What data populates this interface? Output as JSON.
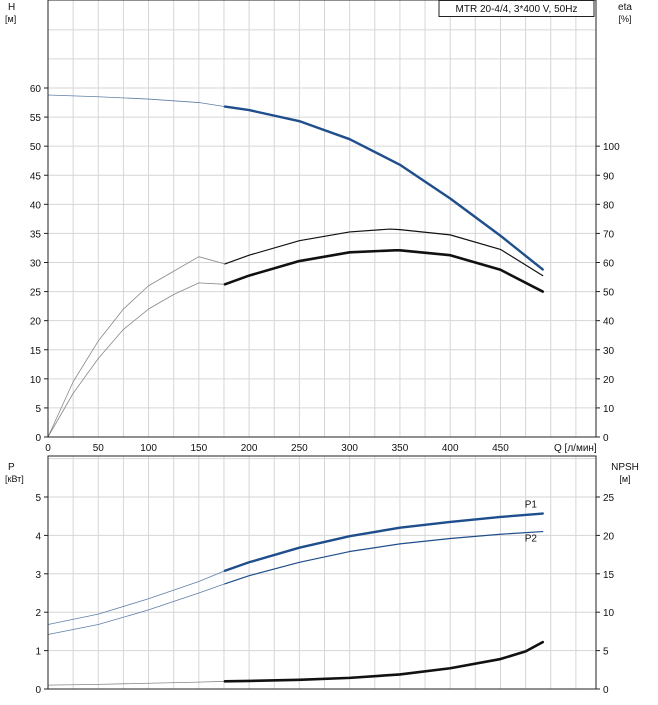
{
  "chart_data": [
    {
      "type": "line",
      "title": "",
      "legend_box": "MTR 20-4/4, 3*400 V, 50Hz",
      "xlabel": "Q [л/мин]",
      "x_ticks": [
        "0",
        "50",
        "100",
        "150",
        "200",
        "250",
        "300",
        "350",
        "400",
        "450"
      ],
      "xlim": [
        0,
        545
      ],
      "y_left": {
        "label_top": "H",
        "label_unit": "[м]",
        "ticks": [
          0,
          5,
          10,
          15,
          20,
          25,
          30,
          35,
          40,
          45,
          50,
          55,
          60
        ],
        "lim": [
          0,
          60
        ]
      },
      "y_right": {
        "label_top": "eta",
        "label_unit": "[%]",
        "ticks": [
          0,
          10,
          20,
          30,
          40,
          50,
          60,
          70,
          80,
          90,
          100
        ],
        "lim": [
          0,
          120
        ]
      },
      "grid": true,
      "series": [
        {
          "axis": "left",
          "color": "#1f4e8c",
          "width_style": "thick",
          "x": [
            0,
            50,
            100,
            150,
            176,
            200,
            250,
            300,
            350,
            400,
            450,
            492
          ],
          "y": [
            58.8,
            58.5,
            58.1,
            57.5,
            56.8,
            56.2,
            54.3,
            51.2,
            46.8,
            41.0,
            34.6,
            28.8
          ]
        },
        {
          "axis": "right",
          "color": "#111111",
          "width_style": "thin",
          "x": [
            0,
            25,
            50,
            75,
            100,
            125,
            150,
            176,
            200,
            250,
            300,
            340,
            350,
            400,
            450,
            492
          ],
          "y": [
            0,
            19,
            33,
            44,
            52,
            57,
            62,
            59.5,
            62.5,
            67.5,
            70.5,
            71.5,
            71.3,
            69.5,
            64.5,
            55.5
          ]
        },
        {
          "axis": "right",
          "color": "#111111",
          "width_style": "bold",
          "x": [
            0,
            25,
            50,
            75,
            100,
            125,
            150,
            176,
            200,
            250,
            300,
            345,
            350,
            400,
            450,
            492
          ],
          "y": [
            0,
            15,
            27,
            37,
            44,
            49,
            53,
            52.5,
            55.5,
            60.5,
            63.5,
            64.2,
            64.2,
            62.5,
            57.5,
            50
          ]
        }
      ]
    },
    {
      "type": "line",
      "title": "",
      "xlabel": "",
      "xlim": [
        0,
        545
      ],
      "y_left": {
        "label_top": "P",
        "label_unit": "[кВт]",
        "ticks": [
          0,
          1,
          2,
          3,
          4,
          5
        ],
        "lim": [
          0,
          5.5
        ]
      },
      "y_right": {
        "label_top": "NPSH",
        "label_unit": "[м]",
        "ticks": [
          0,
          5,
          10,
          15,
          20,
          25
        ],
        "lim": [
          0,
          27.5
        ]
      },
      "grid": true,
      "series": [
        {
          "name": "P1",
          "axis": "left",
          "color": "#1f4e8c",
          "width_style": "thick",
          "x": [
            0,
            50,
            100,
            150,
            176,
            200,
            250,
            300,
            350,
            400,
            450,
            492
          ],
          "y": [
            1.68,
            1.95,
            2.35,
            2.8,
            3.08,
            3.3,
            3.68,
            3.98,
            4.2,
            4.35,
            4.48,
            4.57
          ]
        },
        {
          "name": "P2",
          "axis": "left",
          "color": "#1f4e8c",
          "width_style": "thin",
          "x": [
            0,
            50,
            100,
            150,
            176,
            200,
            250,
            300,
            350,
            400,
            450,
            492
          ],
          "y": [
            1.42,
            1.68,
            2.06,
            2.5,
            2.74,
            2.95,
            3.3,
            3.58,
            3.78,
            3.92,
            4.03,
            4.1
          ]
        },
        {
          "axis": "right",
          "color": "#111111",
          "width_style": "bold",
          "x": [
            0,
            50,
            100,
            150,
            176,
            200,
            250,
            300,
            350,
            400,
            450,
            475,
            492
          ],
          "y": [
            0.5,
            0.6,
            0.75,
            0.9,
            1.0,
            1.05,
            1.2,
            1.45,
            1.9,
            2.7,
            3.9,
            4.9,
            6.1
          ]
        }
      ]
    }
  ]
}
